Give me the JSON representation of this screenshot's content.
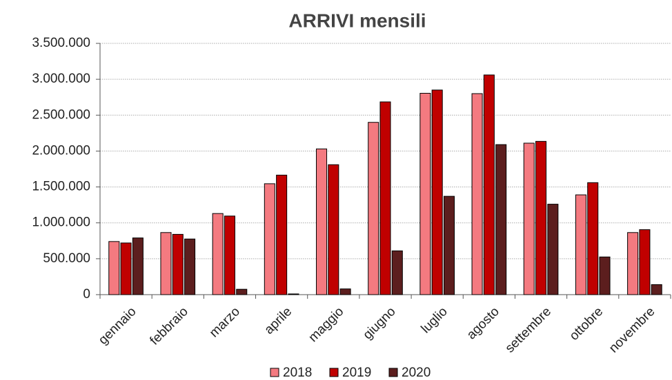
{
  "chart_data": {
    "type": "bar",
    "title": "ARRIVI mensili",
    "categories": [
      "gennaio",
      "febbraio",
      "marzo",
      "aprile",
      "maggio",
      "giugno",
      "luglio",
      "agosto",
      "settembre",
      "ottobre",
      "novembre"
    ],
    "series": [
      {
        "name": "2018",
        "color": "#f47a80",
        "values": [
          740000,
          865000,
          1130000,
          1545000,
          2030000,
          2400000,
          2805000,
          2800000,
          2110000,
          1390000,
          865000
        ]
      },
      {
        "name": "2019",
        "color": "#c00000",
        "values": [
          720000,
          840000,
          1095000,
          1665000,
          1810000,
          2685000,
          2850000,
          3060000,
          2135000,
          1560000,
          905000
        ]
      },
      {
        "name": "2020",
        "color": "#5c1e1e",
        "values": [
          790000,
          775000,
          75000,
          10000,
          80000,
          610000,
          1370000,
          2090000,
          1260000,
          525000,
          140000
        ]
      }
    ],
    "ylim": [
      0,
      3500000
    ],
    "yticks": [
      0,
      {
        "value": 500000,
        "label": "500.000"
      },
      {
        "value": 1000000,
        "label": "1.000.000"
      },
      {
        "value": 1500000,
        "label": "1.500.000"
      },
      {
        "value": 2000000,
        "label": "2.000.000"
      },
      {
        "value": 2500000,
        "label": "2.500.000"
      },
      {
        "value": 3000000,
        "label": "3.000.000"
      },
      {
        "value": 3500000,
        "label": "3.500.000"
      }
    ],
    "grid": true,
    "legend": "bottom"
  }
}
